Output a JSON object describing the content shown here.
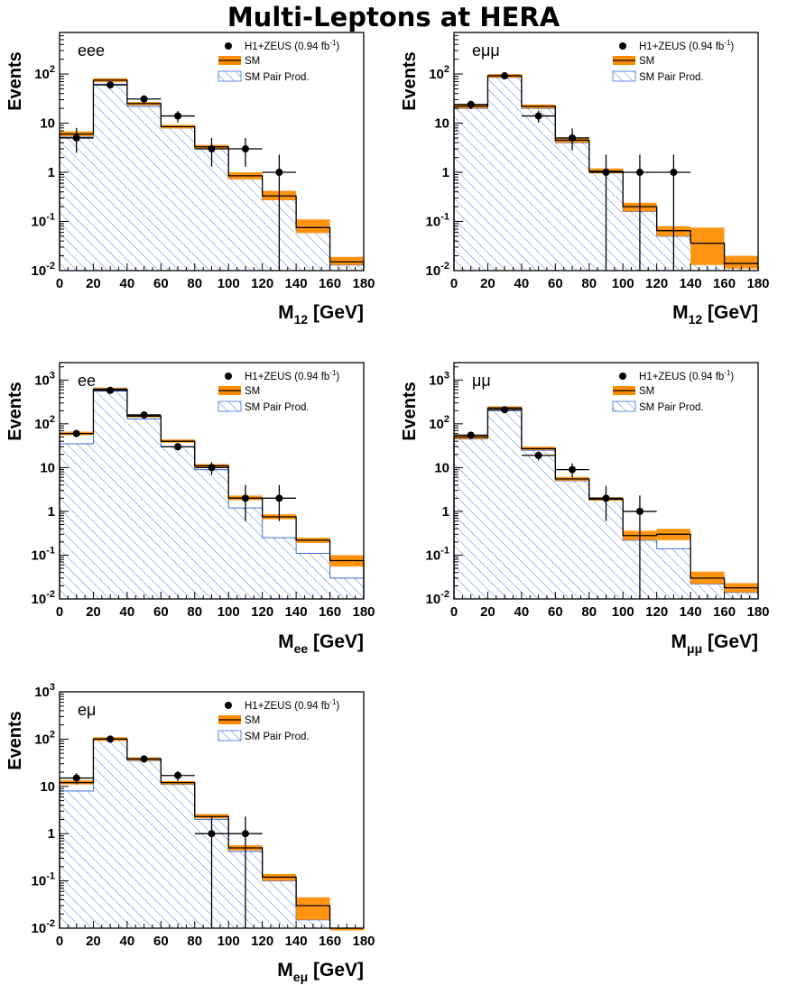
{
  "page": {
    "title": "Multi-Leptons at HERA"
  },
  "legend": {
    "data_label": "H1+ZEUS (0.94 fb",
    "data_sup": "-1",
    "data_close": ")",
    "sm_label": "SM",
    "pair_label": "SM Pair Prod."
  },
  "colors": {
    "sm_band": "#ff8c00",
    "hatch": "#3b6fd8",
    "marker": "#000000"
  },
  "chart_data": [
    {
      "type": "bar",
      "channel": "eee",
      "ylabel": "Events",
      "xlabel_main": "M",
      "xlabel_sub": "12",
      "xlabel_unit": " [GeV]",
      "xlim": [
        0,
        180
      ],
      "ylim": [
        0.01,
        700
      ],
      "bin_edges": [
        0,
        20,
        40,
        60,
        80,
        100,
        120,
        140,
        160,
        180
      ],
      "sm": [
        6.0,
        75,
        25,
        8.5,
        3.3,
        0.85,
        0.33,
        0.075,
        0.015
      ],
      "sm_err_lo": [
        5.4,
        68,
        23,
        7.8,
        3.0,
        0.72,
        0.27,
        0.058,
        0.013
      ],
      "sm_err_hi": [
        6.8,
        82,
        27,
        9.2,
        3.6,
        1.0,
        0.42,
        0.11,
        0.019
      ],
      "pair": [
        5.2,
        62,
        22,
        8.0,
        3.0,
        0.75,
        0.28,
        0.065,
        0.013
      ],
      "data_x": [
        10,
        30,
        50,
        70,
        90,
        110,
        130
      ],
      "data_y": [
        5,
        60,
        31,
        14,
        3,
        3,
        1
      ],
      "data_err_lo": [
        2.5,
        8,
        5.5,
        3.7,
        1.7,
        1.7,
        0.99
      ],
      "data_err_hi": [
        3.0,
        8,
        5.5,
        3.7,
        2.0,
        2.0,
        1.3
      ],
      "yticks": [
        {
          "v": 0.01,
          "m": "10",
          "s": "-2"
        },
        {
          "v": 0.1,
          "m": "10",
          "s": "-1"
        },
        {
          "v": 1,
          "m": "1",
          "s": ""
        },
        {
          "v": 10,
          "m": "10",
          "s": ""
        },
        {
          "v": 100,
          "m": "10",
          "s": "2"
        }
      ],
      "xticks": [
        "0",
        "20",
        "40",
        "60",
        "80",
        "100",
        "120",
        "140",
        "160",
        "180"
      ]
    },
    {
      "type": "bar",
      "channel": "eμμ",
      "ylabel": "Events",
      "xlabel_main": "M",
      "xlabel_sub": "12",
      "xlabel_unit": " [GeV]",
      "xlim": [
        0,
        180
      ],
      "ylim": [
        0.01,
        700
      ],
      "bin_edges": [
        0,
        20,
        40,
        60,
        80,
        100,
        120,
        140,
        160,
        180
      ],
      "sm": [
        22,
        92,
        22,
        4.5,
        1.05,
        0.2,
        0.065,
        0.036,
        0.014
      ],
      "sm_err_lo": [
        20,
        84,
        20,
        4.0,
        0.95,
        0.16,
        0.05,
        0.013,
        0.011
      ],
      "sm_err_hi": [
        24,
        100,
        24,
        5.0,
        1.2,
        0.24,
        0.08,
        0.075,
        0.02
      ],
      "pair": [
        20,
        85,
        20,
        4.0,
        1.0,
        0.16,
        0.05,
        0.036,
        0.013
      ],
      "data_x": [
        10,
        30,
        50,
        70,
        90,
        110,
        130
      ],
      "data_y": [
        24,
        92,
        14,
        5,
        1,
        1,
        1
      ],
      "data_err_lo": [
        4.8,
        9.5,
        3.7,
        2.2,
        0.99,
        0.99,
        0.99
      ],
      "data_err_hi": [
        4.8,
        9.5,
        3.7,
        2.8,
        1.3,
        1.3,
        1.3
      ],
      "yticks": [
        {
          "v": 0.01,
          "m": "10",
          "s": "-2"
        },
        {
          "v": 0.1,
          "m": "10",
          "s": "-1"
        },
        {
          "v": 1,
          "m": "1",
          "s": ""
        },
        {
          "v": 10,
          "m": "10",
          "s": ""
        },
        {
          "v": 100,
          "m": "10",
          "s": "2"
        }
      ],
      "xticks": [
        "0",
        "20",
        "40",
        "60",
        "80",
        "100",
        "120",
        "140",
        "160",
        "180"
      ]
    },
    {
      "type": "bar",
      "channel": "ee",
      "ylabel": "Events",
      "xlabel_main": "M",
      "xlabel_sub": "ee",
      "xlabel_unit": " [GeV]",
      "xlim": [
        0,
        180
      ],
      "ylim": [
        0.01,
        2500
      ],
      "bin_edges": [
        0,
        20,
        40,
        60,
        80,
        100,
        120,
        140,
        160,
        180
      ],
      "sm": [
        60,
        620,
        150,
        40,
        11,
        2.0,
        0.75,
        0.22,
        0.075
      ],
      "sm_err_lo": [
        55,
        570,
        140,
        37,
        10,
        1.8,
        0.66,
        0.19,
        0.055
      ],
      "sm_err_hi": [
        66,
        670,
        162,
        44,
        12,
        2.3,
        0.86,
        0.25,
        0.1
      ],
      "pair": [
        35,
        560,
        130,
        30,
        9.0,
        1.2,
        0.25,
        0.11,
        0.03
      ],
      "data_x": [
        10,
        30,
        50,
        70,
        90,
        110,
        130
      ],
      "data_y": [
        60,
        580,
        160,
        30,
        10,
        2,
        2
      ],
      "data_err_lo": [
        7.7,
        24,
        12.6,
        5.5,
        3.2,
        1.4,
        1.4
      ],
      "data_err_hi": [
        7.7,
        24,
        12.6,
        5.5,
        3.2,
        2.0,
        2.0
      ],
      "yticks": [
        {
          "v": 0.01,
          "m": "10",
          "s": "-2"
        },
        {
          "v": 0.1,
          "m": "10",
          "s": "-1"
        },
        {
          "v": 1,
          "m": "1",
          "s": ""
        },
        {
          "v": 10,
          "m": "10",
          "s": ""
        },
        {
          "v": 100,
          "m": "10",
          "s": "2"
        },
        {
          "v": 1000,
          "m": "10",
          "s": "3"
        }
      ],
      "xticks": [
        "0",
        "20",
        "40",
        "60",
        "80",
        "100",
        "120",
        "140",
        "160",
        "180"
      ]
    },
    {
      "type": "bar",
      "channel": "μμ",
      "ylabel": "Events",
      "xlabel_main": "M",
      "xlabel_sub": "μμ",
      "xlabel_unit": " [GeV]",
      "xlim": [
        0,
        180
      ],
      "ylim": [
        0.01,
        2500
      ],
      "bin_edges": [
        0,
        20,
        40,
        60,
        80,
        100,
        120,
        140,
        160,
        180
      ],
      "sm": [
        50,
        230,
        27,
        5.5,
        1.9,
        0.28,
        0.3,
        0.03,
        0.018
      ],
      "sm_err_lo": [
        45,
        210,
        25,
        5.0,
        1.75,
        0.22,
        0.22,
        0.022,
        0.014
      ],
      "sm_err_hi": [
        55,
        250,
        30,
        6.1,
        2.1,
        0.36,
        0.4,
        0.042,
        0.023
      ],
      "pair": [
        45,
        200,
        25,
        5.0,
        1.8,
        0.22,
        0.14,
        0.022,
        0.014
      ],
      "data_x": [
        10,
        30,
        50,
        70,
        90,
        110
      ],
      "data_y": [
        55,
        210,
        19,
        9,
        2.0,
        1
      ],
      "data_err_lo": [
        7.4,
        14.5,
        4.4,
        3.0,
        1.4,
        0.99
      ],
      "data_err_hi": [
        7.4,
        14.5,
        4.4,
        3.5,
        1.8,
        1.3
      ],
      "yticks": [
        {
          "v": 0.01,
          "m": "10",
          "s": "-2"
        },
        {
          "v": 0.1,
          "m": "10",
          "s": "-1"
        },
        {
          "v": 1,
          "m": "1",
          "s": ""
        },
        {
          "v": 10,
          "m": "10",
          "s": ""
        },
        {
          "v": 100,
          "m": "10",
          "s": "2"
        },
        {
          "v": 1000,
          "m": "10",
          "s": "3"
        }
      ],
      "xticks": [
        "0",
        "20",
        "40",
        "60",
        "80",
        "100",
        "120",
        "140",
        "160",
        "180"
      ]
    },
    {
      "type": "bar",
      "channel": "eμ",
      "ylabel": "Events",
      "xlabel_main": "M",
      "xlabel_sub": "eμ",
      "xlabel_unit": " [GeV]",
      "xlim": [
        0,
        180
      ],
      "ylim": [
        0.01,
        1000
      ],
      "bin_edges": [
        0,
        20,
        40,
        60,
        80,
        100,
        120,
        140,
        160,
        180
      ],
      "sm": [
        12,
        100,
        38,
        12,
        2.3,
        0.5,
        0.12,
        0.03,
        0.01
      ],
      "sm_err_lo": [
        11,
        92,
        35,
        11,
        2.1,
        0.44,
        0.1,
        0.015,
        0.01
      ],
      "sm_err_hi": [
        13.5,
        110,
        41,
        13,
        2.6,
        0.57,
        0.14,
        0.045,
        0.01
      ],
      "pair": [
        8,
        95,
        35,
        11,
        2.0,
        0.42,
        0.1,
        0.015,
        0.01
      ],
      "data_x": [
        10,
        30,
        50,
        70,
        90,
        110
      ],
      "data_y": [
        15,
        100,
        38,
        17,
        1,
        1
      ],
      "data_err_lo": [
        3.9,
        10,
        6.2,
        4.1,
        0.99,
        0.99
      ],
      "data_err_hi": [
        3.9,
        10,
        6.2,
        4.1,
        1.3,
        1.3
      ],
      "yticks": [
        {
          "v": 0.01,
          "m": "10",
          "s": "-2"
        },
        {
          "v": 0.1,
          "m": "10",
          "s": "-1"
        },
        {
          "v": 1,
          "m": "1",
          "s": ""
        },
        {
          "v": 10,
          "m": "10",
          "s": ""
        },
        {
          "v": 100,
          "m": "10",
          "s": "2"
        },
        {
          "v": 1000,
          "m": "10",
          "s": "3"
        }
      ],
      "xticks": [
        "0",
        "20",
        "40",
        "60",
        "80",
        "100",
        "120",
        "140",
        "160",
        "180"
      ]
    }
  ]
}
